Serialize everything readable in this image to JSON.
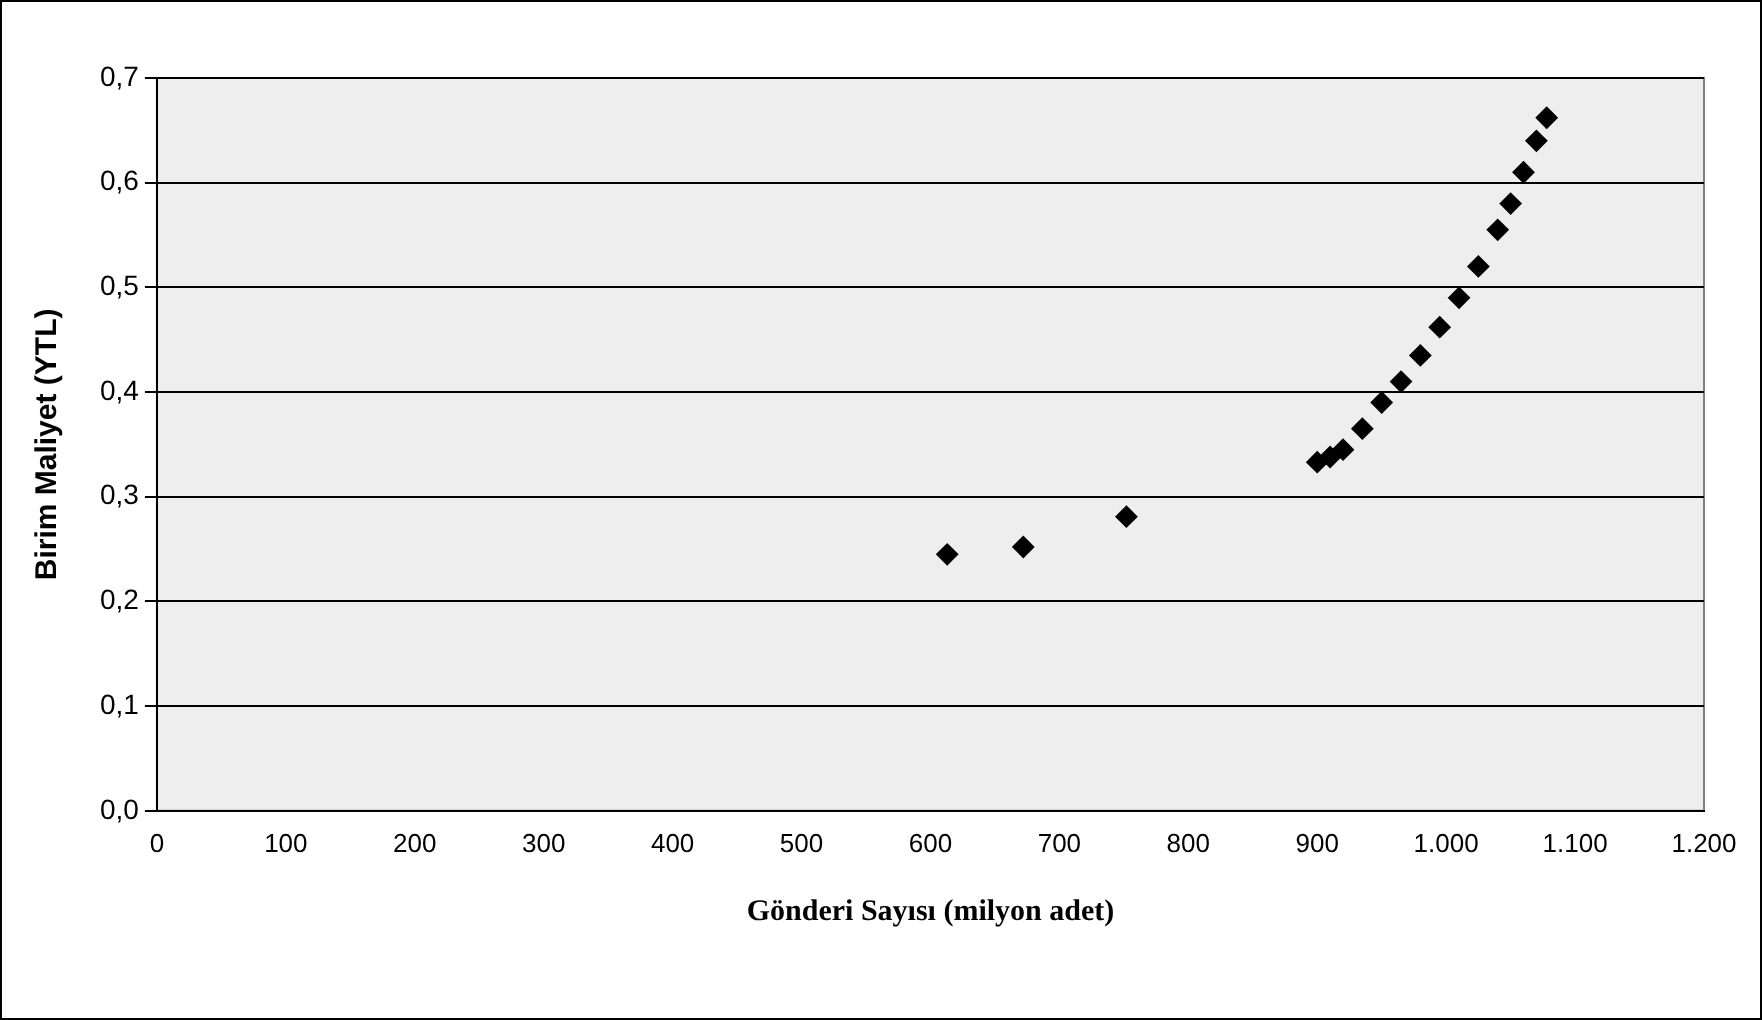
{
  "chart_data": {
    "type": "scatter",
    "xlabel": "Gönderi Sayısı (milyon adet)",
    "ylabel": "Birim Maliyet (YTL)",
    "x": [
      613,
      672,
      752,
      900,
      910,
      920,
      935,
      950,
      965,
      980,
      995,
      1010,
      1025,
      1040,
      1050,
      1060,
      1070,
      1078
    ],
    "series": [
      {
        "color": "#000000",
        "values": [
          0.245,
          0.252,
          0.281,
          0.333,
          0.338,
          0.345,
          0.365,
          0.39,
          0.41,
          0.435,
          0.462,
          0.49,
          0.52,
          0.555,
          0.58,
          0.61,
          0.64,
          0.662
        ]
      }
    ],
    "xlim": [
      0,
      1200
    ],
    "xticks": [
      0,
      100,
      200,
      300,
      400,
      500,
      600,
      700,
      800,
      900,
      {
        "value": 1000,
        "label": "1.000"
      },
      {
        "value": 1100,
        "label": "1.100"
      },
      {
        "value": 1200,
        "label": "1.200"
      }
    ],
    "ylim": [
      0,
      0.7
    ],
    "yticks": [
      {
        "value": 0,
        "label": "0,0"
      },
      {
        "value": 0.1,
        "label": "0,1"
      },
      {
        "value": 0.2,
        "label": "0,2"
      },
      {
        "value": 0.3,
        "label": "0,3"
      },
      {
        "value": 0.4,
        "label": "0,4"
      },
      {
        "value": 0.5,
        "label": "0,5"
      },
      {
        "value": 0.6,
        "label": "0,6"
      },
      {
        "value": 0.7,
        "label": "0,7"
      }
    ],
    "grid": "y",
    "legend": false,
    "marker": "diamond"
  }
}
